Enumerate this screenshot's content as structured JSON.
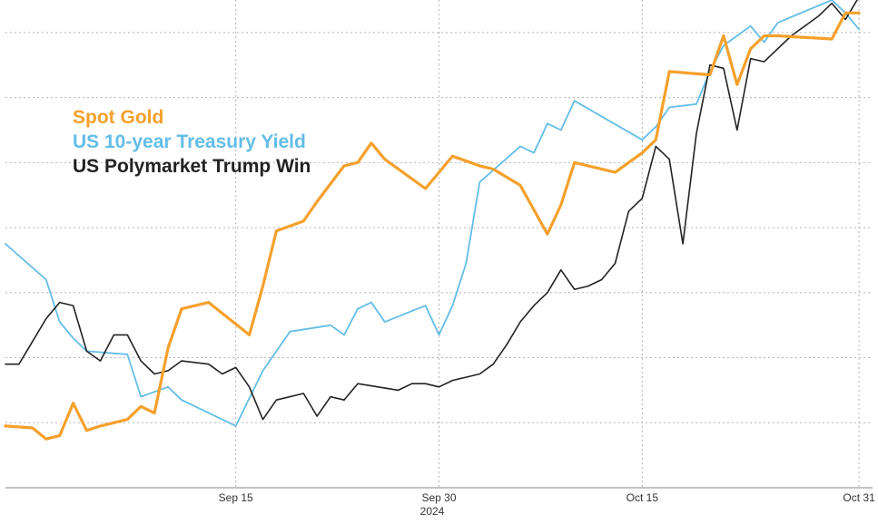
{
  "chart_data": {
    "type": "line",
    "title": "",
    "xlabel": "",
    "ylabel": "",
    "x_ticks": [
      {
        "label": "Sep 15",
        "date": "2024-09-15"
      },
      {
        "label": "Sep 30",
        "date": "2024-09-30"
      },
      {
        "label": "Oct 15",
        "date": "2024-10-15"
      },
      {
        "label": "Oct 31",
        "date": "2024-10-31"
      }
    ],
    "year_label": "2024",
    "xlim": [
      "2024-08-29",
      "2024-11-01"
    ],
    "ylim": [
      0,
      7.5
    ],
    "y_gridlines": [
      1,
      2,
      3,
      4,
      5,
      6,
      7
    ],
    "grid": true,
    "y_axis_labels_shown": false,
    "legend_placement": "top-left",
    "series": [
      {
        "name": "Spot Gold",
        "color": "#f5a02c",
        "points": [
          [
            "2024-08-29",
            0.95
          ],
          [
            "2024-08-31",
            0.92
          ],
          [
            "2024-09-01",
            0.75
          ],
          [
            "2024-09-02",
            0.8
          ],
          [
            "2024-09-03",
            1.3
          ],
          [
            "2024-09-04",
            0.88
          ],
          [
            "2024-09-05",
            0.95
          ],
          [
            "2024-09-07",
            1.05
          ],
          [
            "2024-09-08",
            1.25
          ],
          [
            "2024-09-09",
            1.15
          ],
          [
            "2024-09-10",
            2.15
          ],
          [
            "2024-09-11",
            2.75
          ],
          [
            "2024-09-13",
            2.85
          ],
          [
            "2024-09-16",
            2.35
          ],
          [
            "2024-09-17",
            3.1
          ],
          [
            "2024-09-18",
            3.95
          ],
          [
            "2024-09-20",
            4.1
          ],
          [
            "2024-09-21",
            4.4
          ],
          [
            "2024-09-23",
            4.95
          ],
          [
            "2024-09-24",
            5
          ],
          [
            "2024-09-25",
            5.3
          ],
          [
            "2024-09-26",
            5.05
          ],
          [
            "2024-09-29",
            4.6
          ],
          [
            "2024-09-30",
            4.85
          ],
          [
            "2024-10-01",
            5.1
          ],
          [
            "2024-10-03",
            4.95
          ],
          [
            "2024-10-04",
            4.9
          ],
          [
            "2024-10-06",
            4.65
          ],
          [
            "2024-10-08",
            3.9
          ],
          [
            "2024-10-09",
            4.35
          ],
          [
            "2024-10-10",
            5
          ],
          [
            "2024-10-13",
            4.85
          ],
          [
            "2024-10-15",
            5.15
          ],
          [
            "2024-10-16",
            5.35
          ],
          [
            "2024-10-17",
            6.4
          ],
          [
            "2024-10-20",
            6.35
          ],
          [
            "2024-10-21",
            6.95
          ],
          [
            "2024-10-22",
            6.2
          ],
          [
            "2024-10-23",
            6.75
          ],
          [
            "2024-10-24",
            6.95
          ],
          [
            "2024-10-25",
            6.95
          ],
          [
            "2024-10-29",
            6.9
          ],
          [
            "2024-10-30",
            7.3
          ],
          [
            "2024-10-31",
            7.3
          ]
        ]
      },
      {
        "name": "US 10-year Treasury Yield",
        "color": "#63bde6",
        "points": [
          [
            "2024-08-29",
            3.75
          ],
          [
            "2024-09-01",
            3.2
          ],
          [
            "2024-09-02",
            2.55
          ],
          [
            "2024-09-03",
            2.3
          ],
          [
            "2024-09-04",
            2.1
          ],
          [
            "2024-09-07",
            2.05
          ],
          [
            "2024-09-08",
            1.4
          ],
          [
            "2024-09-10",
            1.55
          ],
          [
            "2024-09-11",
            1.35
          ],
          [
            "2024-09-14",
            1.05
          ],
          [
            "2024-09-15",
            0.95
          ],
          [
            "2024-09-17",
            1.8
          ],
          [
            "2024-09-18",
            2.1
          ],
          [
            "2024-09-19",
            2.4
          ],
          [
            "2024-09-22",
            2.5
          ],
          [
            "2024-09-23",
            2.35
          ],
          [
            "2024-09-24",
            2.75
          ],
          [
            "2024-09-25",
            2.85
          ],
          [
            "2024-09-26",
            2.55
          ],
          [
            "2024-09-29",
            2.8
          ],
          [
            "2024-09-30",
            2.35
          ],
          [
            "2024-10-01",
            2.8
          ],
          [
            "2024-10-02",
            3.45
          ],
          [
            "2024-10-03",
            4.7
          ],
          [
            "2024-10-06",
            5.25
          ],
          [
            "2024-10-07",
            5.15
          ],
          [
            "2024-10-08",
            5.6
          ],
          [
            "2024-10-09",
            5.5
          ],
          [
            "2024-10-10",
            5.95
          ],
          [
            "2024-10-15",
            5.35
          ],
          [
            "2024-10-16",
            5.55
          ],
          [
            "2024-10-17",
            5.85
          ],
          [
            "2024-10-19",
            5.9
          ],
          [
            "2024-10-20",
            6.4
          ],
          [
            "2024-10-21",
            6.8
          ],
          [
            "2024-10-22",
            6.95
          ],
          [
            "2024-10-23",
            7.1
          ],
          [
            "2024-10-24",
            6.85
          ],
          [
            "2024-10-25",
            7.15
          ],
          [
            "2024-10-29",
            7.5
          ],
          [
            "2024-10-30",
            7.3
          ],
          [
            "2024-10-31",
            7.05
          ]
        ]
      },
      {
        "name": "US Polymarket Trump Win",
        "color": "#222222",
        "points": [
          [
            "2024-08-29",
            1.9
          ],
          [
            "2024-08-30",
            1.9
          ],
          [
            "2024-09-01",
            2.6
          ],
          [
            "2024-09-02",
            2.85
          ],
          [
            "2024-09-03",
            2.8
          ],
          [
            "2024-09-04",
            2.1
          ],
          [
            "2024-09-05",
            1.95
          ],
          [
            "2024-09-06",
            2.35
          ],
          [
            "2024-09-07",
            2.35
          ],
          [
            "2024-09-08",
            1.95
          ],
          [
            "2024-09-09",
            1.75
          ],
          [
            "2024-09-10",
            1.8
          ],
          [
            "2024-09-11",
            1.95
          ],
          [
            "2024-09-13",
            1.9
          ],
          [
            "2024-09-14",
            1.75
          ],
          [
            "2024-09-15",
            1.85
          ],
          [
            "2024-09-16",
            1.55
          ],
          [
            "2024-09-17",
            1.05
          ],
          [
            "2024-09-18",
            1.35
          ],
          [
            "2024-09-20",
            1.45
          ],
          [
            "2024-09-21",
            1.1
          ],
          [
            "2024-09-22",
            1.4
          ],
          [
            "2024-09-23",
            1.35
          ],
          [
            "2024-09-24",
            1.6
          ],
          [
            "2024-09-27",
            1.5
          ],
          [
            "2024-09-28",
            1.6
          ],
          [
            "2024-09-29",
            1.6
          ],
          [
            "2024-09-30",
            1.55
          ],
          [
            "2024-10-01",
            1.65
          ],
          [
            "2024-10-02",
            1.7
          ],
          [
            "2024-10-03",
            1.75
          ],
          [
            "2024-10-04",
            1.9
          ],
          [
            "2024-10-05",
            2.2
          ],
          [
            "2024-10-06",
            2.55
          ],
          [
            "2024-10-07",
            2.8
          ],
          [
            "2024-10-08",
            3
          ],
          [
            "2024-10-09",
            3.35
          ],
          [
            "2024-10-10",
            3.05
          ],
          [
            "2024-10-11",
            3.1
          ],
          [
            "2024-10-12",
            3.2
          ],
          [
            "2024-10-13",
            3.45
          ],
          [
            "2024-10-14",
            4.25
          ],
          [
            "2024-10-15",
            4.45
          ],
          [
            "2024-10-16",
            5.25
          ],
          [
            "2024-10-17",
            5.05
          ],
          [
            "2024-10-18",
            3.75
          ],
          [
            "2024-10-19",
            5.45
          ],
          [
            "2024-10-20",
            6.5
          ],
          [
            "2024-10-21",
            6.45
          ],
          [
            "2024-10-22",
            5.5
          ],
          [
            "2024-10-23",
            6.6
          ],
          [
            "2024-10-24",
            6.55
          ],
          [
            "2024-10-26",
            6.95
          ],
          [
            "2024-10-28",
            7.25
          ],
          [
            "2024-10-29",
            7.45
          ],
          [
            "2024-10-30",
            7.2
          ],
          [
            "2024-10-31",
            7.55
          ]
        ]
      }
    ]
  }
}
